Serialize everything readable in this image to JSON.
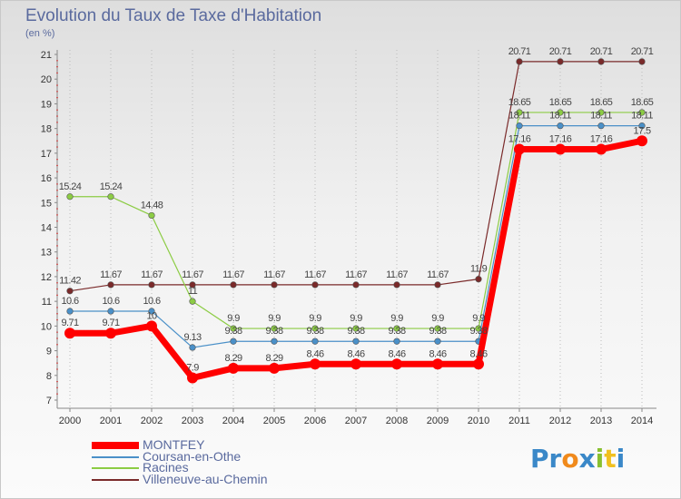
{
  "chart_data": {
    "type": "line",
    "title": "Evolution du Taux de Taxe d'Habitation",
    "ylabel": "(en %)",
    "xlabel": "",
    "x": [
      "2000",
      "2001",
      "2002",
      "2003",
      "2004",
      "2005",
      "2006",
      "2007",
      "2008",
      "2009",
      "2010",
      "2011",
      "2012",
      "2013",
      "2014"
    ],
    "ylim": [
      7,
      21
    ],
    "yticks": [
      7,
      8,
      9,
      10,
      11,
      12,
      13,
      14,
      15,
      16,
      17,
      18,
      19,
      20,
      21
    ],
    "grid": "vertical dotted",
    "legend_position": "bottom-left",
    "series": [
      {
        "name": "MONTFEY",
        "color": "#ff0000",
        "values": [
          9.71,
          9.71,
          10,
          7.9,
          8.29,
          8.29,
          8.46,
          8.46,
          8.46,
          8.46,
          8.46,
          17.16,
          17.16,
          17.16,
          17.5
        ],
        "labels": [
          "9.71",
          "9.71",
          "10",
          "7.9",
          "8.29",
          "8.29",
          "8.46",
          "8.46",
          "8.46",
          "8.46",
          "8.46",
          "17.16",
          "17.16",
          "17.16",
          "17.5"
        ]
      },
      {
        "name": "Coursan-en-Othe",
        "color": "#4a90c8",
        "values": [
          10.6,
          10.6,
          10.6,
          9.13,
          9.38,
          9.38,
          9.38,
          9.38,
          9.38,
          9.38,
          9.38,
          18.11,
          18.11,
          18.11,
          18.11
        ],
        "labels": [
          "10.6",
          "10.6",
          "10.6",
          "9.13",
          "9.38",
          "9.38",
          "9.38",
          "9.38",
          "9.38",
          "9.38",
          "9.38",
          "18.11",
          "18.11",
          "18.11",
          "18.11"
        ]
      },
      {
        "name": "Racines",
        "color": "#8ccc44",
        "values": [
          15.24,
          15.24,
          14.48,
          11,
          9.9,
          9.9,
          9.9,
          9.9,
          9.9,
          9.9,
          9.9,
          18.65,
          18.65,
          18.65,
          18.65
        ],
        "labels": [
          "15.24",
          "15.24",
          "14.48",
          "11",
          "9.9",
          "9.9",
          "9.9",
          "9.9",
          "9.9",
          "9.9",
          "9.9",
          "18.65",
          "18.65",
          "18.65",
          "18.65"
        ]
      },
      {
        "name": "Villeneuve-au-Chemin",
        "color": "#7a2a2a",
        "values": [
          11.42,
          11.67,
          11.67,
          11.67,
          11.67,
          11.67,
          11.67,
          11.67,
          11.67,
          11.67,
          11.9,
          20.71,
          20.71,
          20.71,
          20.71
        ],
        "labels": [
          "11.42",
          "11.67",
          "11.67",
          "11.67",
          "11.67",
          "11.67",
          "11.67",
          "11.67",
          "11.67",
          "11.67",
          "11.9",
          "20.71",
          "20.71",
          "20.71",
          "20.71"
        ]
      }
    ]
  },
  "logo": {
    "letters": [
      "P",
      "r",
      "o",
      "x",
      "i",
      "t",
      "i"
    ],
    "colors": [
      "#3a88c8",
      "#3a88c8",
      "#f08a1c",
      "#3a88c8",
      "#88c030",
      "#f0c020",
      "#3a88c8"
    ]
  }
}
